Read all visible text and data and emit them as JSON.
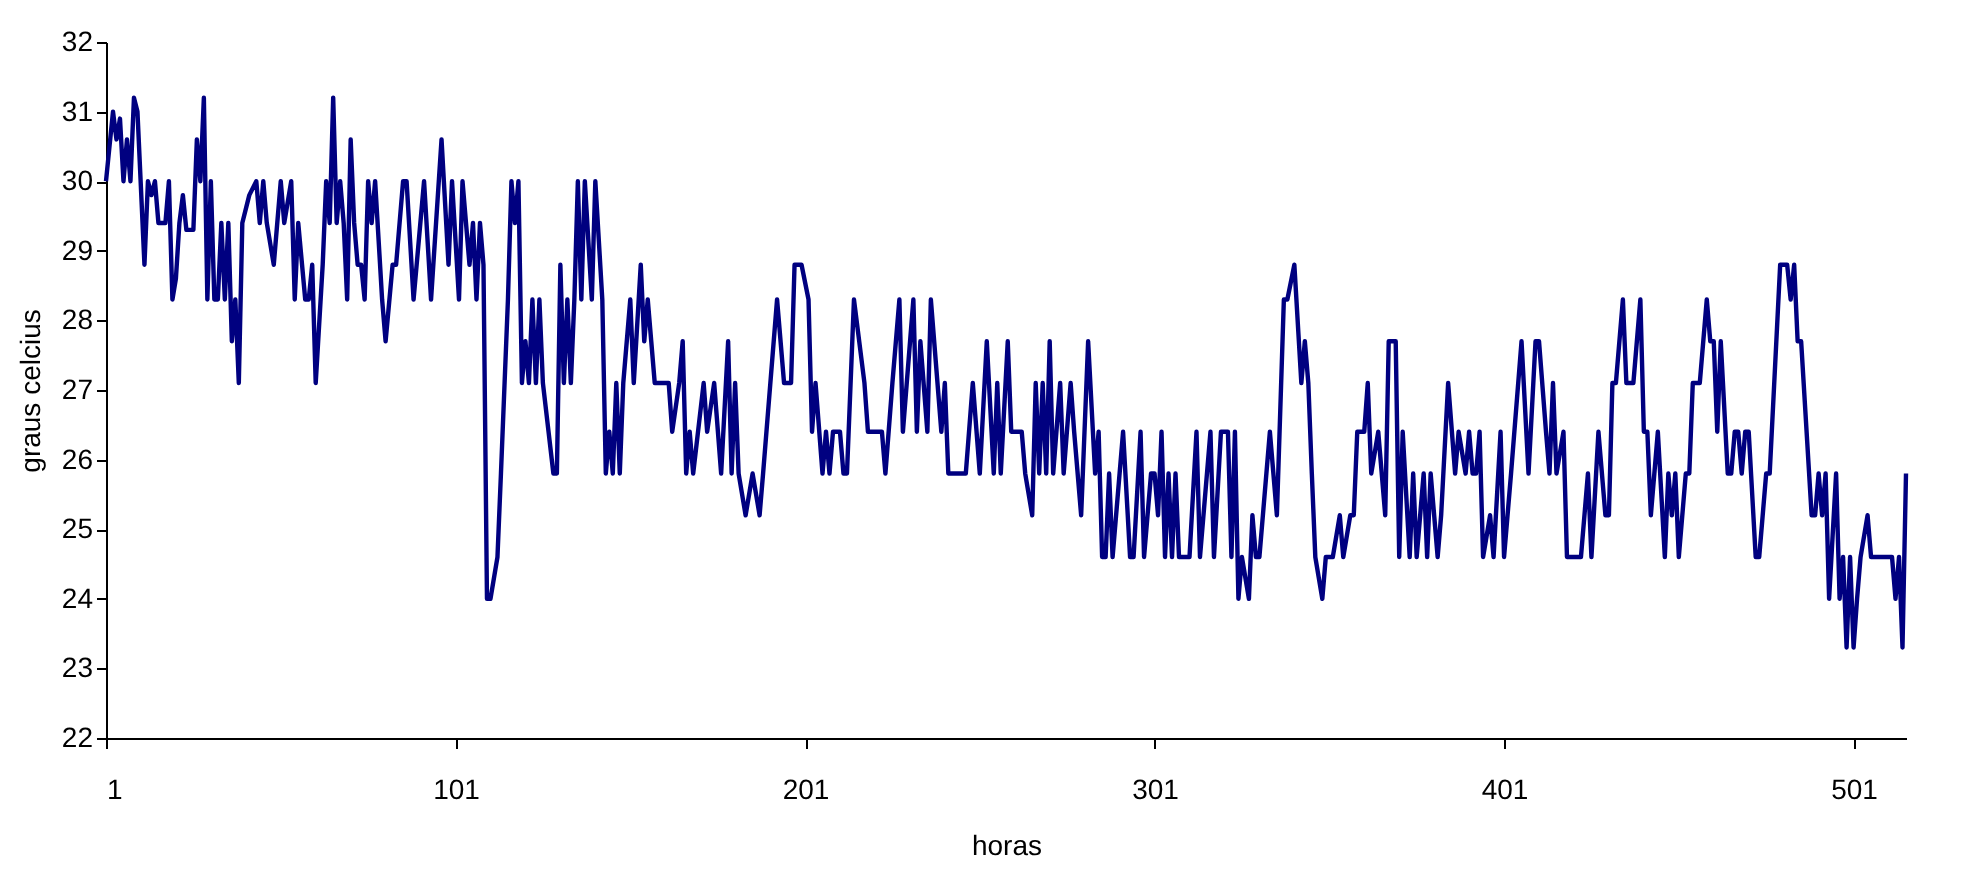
{
  "chart_data": {
    "type": "line",
    "xlabel": "horas",
    "ylabel": "graus celcius",
    "xlim": [
      1,
      516
    ],
    "xticks": [
      1,
      101,
      201,
      301,
      401,
      501
    ],
    "ylim": [
      22,
      32
    ],
    "yticks": [
      22,
      23,
      24,
      25,
      26,
      27,
      28,
      29,
      30,
      31,
      32
    ],
    "grid": false,
    "marker": "none",
    "line_style": "solid",
    "series": [
      {
        "color": "#000080",
        "x": [
          1,
          3,
          4,
          5,
          6,
          7,
          8,
          9,
          10,
          12,
          13,
          14,
          15,
          16,
          18,
          19,
          20,
          21,
          22,
          23,
          24,
          26,
          27,
          28,
          29,
          30,
          31,
          32,
          33,
          34,
          35,
          36,
          37,
          38,
          39,
          40,
          42,
          44,
          45,
          46,
          47,
          49,
          50,
          51,
          52,
          54,
          55,
          56,
          58,
          59,
          60,
          61,
          63,
          64,
          65,
          66,
          67,
          68,
          69,
          70,
          71,
          72,
          73,
          74,
          75,
          76,
          77,
          78,
          80,
          81,
          83,
          84,
          86,
          87,
          89,
          92,
          94,
          97,
          99,
          100,
          102,
          103,
          105,
          106,
          107,
          108,
          109,
          110,
          111,
          113,
          114,
          116,
          117,
          118,
          119,
          120,
          121,
          122,
          123,
          124,
          125,
          126,
          129,
          130,
          131,
          132,
          133,
          134,
          135,
          136,
          137,
          138,
          140,
          141,
          143,
          144,
          145,
          146,
          147,
          148,
          149,
          151,
          152,
          154,
          155,
          156,
          157,
          158,
          162,
          163,
          165,
          166,
          167,
          168,
          169,
          172,
          173,
          175,
          177,
          179,
          180,
          181,
          182,
          184,
          186,
          188,
          189,
          193,
          195,
          197,
          198,
          200,
          202,
          203,
          204,
          206,
          207,
          208,
          209,
          211,
          212,
          213,
          215,
          218,
          219,
          223,
          224,
          226,
          228,
          229,
          232,
          233,
          234,
          236,
          237,
          240,
          241,
          242,
          243,
          247,
          249,
          251,
          253,
          255,
          256,
          257,
          259,
          260,
          263,
          264,
          266,
          267,
          268,
          269,
          270,
          271,
          272,
          274,
          275,
          277,
          278,
          280,
          282,
          284,
          285,
          286,
          287,
          288,
          289,
          292,
          294,
          295,
          297,
          298,
          300,
          301,
          302,
          303,
          304,
          305,
          306,
          307,
          308,
          310,
          311,
          313,
          314,
          317,
          318,
          320,
          322,
          323,
          324,
          325,
          326,
          328,
          329,
          330,
          331,
          334,
          336,
          338,
          339,
          341,
          343,
          344,
          345,
          346,
          347,
          349,
          350,
          352,
          354,
          355,
          357,
          358,
          359,
          361,
          362,
          363,
          365,
          367,
          368,
          370,
          371,
          372,
          374,
          375,
          376,
          378,
          379,
          380,
          382,
          383,
          385,
          387,
          388,
          390,
          391,
          392,
          393,
          394,
          395,
          397,
          398,
          400,
          401,
          403,
          406,
          408,
          410,
          411,
          413,
          414,
          415,
          416,
          418,
          419,
          423,
          425,
          426,
          428,
          430,
          431,
          432,
          433,
          435,
          436,
          438,
          440,
          441,
          442,
          443,
          445,
          447,
          448,
          449,
          450,
          451,
          453,
          454,
          455,
          457,
          459,
          460,
          461,
          462,
          463,
          465,
          466,
          467,
          468,
          469,
          470,
          471,
          473,
          474,
          476,
          477,
          480,
          482,
          483,
          484,
          485,
          486,
          489,
          490,
          491,
          492,
          493,
          494,
          496,
          497,
          498,
          499,
          500,
          501,
          502,
          503,
          505,
          506,
          512,
          513,
          514,
          515,
          516
        ],
        "values": [
          30.0,
          31.0,
          30.6,
          30.9,
          30.0,
          30.6,
          30.0,
          31.2,
          31.0,
          28.8,
          30.0,
          29.8,
          30.0,
          29.4,
          29.4,
          30.0,
          28.3,
          28.6,
          29.4,
          29.8,
          29.3,
          29.3,
          30.6,
          30.0,
          31.2,
          28.3,
          30.0,
          28.3,
          28.3,
          29.4,
          28.3,
          29.4,
          27.7,
          28.3,
          27.1,
          29.4,
          29.8,
          30.0,
          29.4,
          30.0,
          29.4,
          28.8,
          29.4,
          30.0,
          29.4,
          30.0,
          28.3,
          29.4,
          28.3,
          28.3,
          28.8,
          27.1,
          28.8,
          30.0,
          29.4,
          31.2,
          29.4,
          30.0,
          29.4,
          28.3,
          30.6,
          29.4,
          28.8,
          28.8,
          28.3,
          30.0,
          29.4,
          30.0,
          28.3,
          27.7,
          28.8,
          28.8,
          30.0,
          30.0,
          28.3,
          30.0,
          28.3,
          30.6,
          28.8,
          30.0,
          28.3,
          30.0,
          28.8,
          29.4,
          28.3,
          29.4,
          28.8,
          24.0,
          24.0,
          24.6,
          25.8,
          28.3,
          30.0,
          29.4,
          30.0,
          27.1,
          27.7,
          27.1,
          28.3,
          27.1,
          28.3,
          27.1,
          25.8,
          25.8,
          28.8,
          27.1,
          28.3,
          27.1,
          28.3,
          30.0,
          28.3,
          30.0,
          28.3,
          30.0,
          28.3,
          25.8,
          26.4,
          25.8,
          27.1,
          25.8,
          27.1,
          28.3,
          27.1,
          28.8,
          27.7,
          28.3,
          27.7,
          27.1,
          27.1,
          26.4,
          27.1,
          27.7,
          25.8,
          26.4,
          25.8,
          27.1,
          26.4,
          27.1,
          25.8,
          27.7,
          25.8,
          27.1,
          25.8,
          25.2,
          25.8,
          25.2,
          25.8,
          28.3,
          27.1,
          27.1,
          28.8,
          28.8,
          28.3,
          26.4,
          27.1,
          25.8,
          26.4,
          25.8,
          26.4,
          26.4,
          25.8,
          25.8,
          28.3,
          27.1,
          26.4,
          26.4,
          25.8,
          27.1,
          28.3,
          26.4,
          28.3,
          26.4,
          27.7,
          26.4,
          28.3,
          26.4,
          27.1,
          25.8,
          25.8,
          25.8,
          27.1,
          25.8,
          27.7,
          25.8,
          27.1,
          25.8,
          27.7,
          26.4,
          26.4,
          25.8,
          25.2,
          27.1,
          25.8,
          27.1,
          25.8,
          27.7,
          25.8,
          27.1,
          25.8,
          27.1,
          26.4,
          25.2,
          27.7,
          25.8,
          26.4,
          24.6,
          24.6,
          25.8,
          24.6,
          26.4,
          24.6,
          24.6,
          26.4,
          24.6,
          25.8,
          25.8,
          25.2,
          26.4,
          24.6,
          25.8,
          24.6,
          25.8,
          24.6,
          24.6,
          24.6,
          26.4,
          24.6,
          26.4,
          24.6,
          26.4,
          26.4,
          24.6,
          26.4,
          24.0,
          24.6,
          24.0,
          25.2,
          24.6,
          24.6,
          26.4,
          25.2,
          28.3,
          28.3,
          28.8,
          27.1,
          27.7,
          27.1,
          25.8,
          24.6,
          24.0,
          24.6,
          24.6,
          25.2,
          24.6,
          25.2,
          25.2,
          26.4,
          26.4,
          27.1,
          25.8,
          26.4,
          25.2,
          27.7,
          27.7,
          24.6,
          26.4,
          24.6,
          25.8,
          24.6,
          25.8,
          24.6,
          25.8,
          24.6,
          25.2,
          27.1,
          25.8,
          26.4,
          25.8,
          26.4,
          25.8,
          25.8,
          26.4,
          24.6,
          25.2,
          24.6,
          26.4,
          24.6,
          25.8,
          27.7,
          25.8,
          27.7,
          27.7,
          26.4,
          25.8,
          27.1,
          25.8,
          26.4,
          24.6,
          24.6,
          25.8,
          24.6,
          26.4,
          25.2,
          25.2,
          27.1,
          27.1,
          28.3,
          27.1,
          27.1,
          28.3,
          26.4,
          26.4,
          25.2,
          26.4,
          24.6,
          25.8,
          25.2,
          25.8,
          24.6,
          25.8,
          25.8,
          27.1,
          27.1,
          28.3,
          27.7,
          27.7,
          26.4,
          27.7,
          25.8,
          25.8,
          26.4,
          26.4,
          25.8,
          26.4,
          26.4,
          24.6,
          24.6,
          25.8,
          25.8,
          28.8,
          28.8,
          28.3,
          28.8,
          27.7,
          27.7,
          25.2,
          25.2,
          25.8,
          25.2,
          25.8,
          24.0,
          25.8,
          24.0,
          24.6,
          23.3,
          24.6,
          23.3,
          24.0,
          24.6,
          25.2,
          24.6,
          24.6,
          24.0,
          24.6,
          23.3,
          25.8
        ]
      }
    ]
  }
}
